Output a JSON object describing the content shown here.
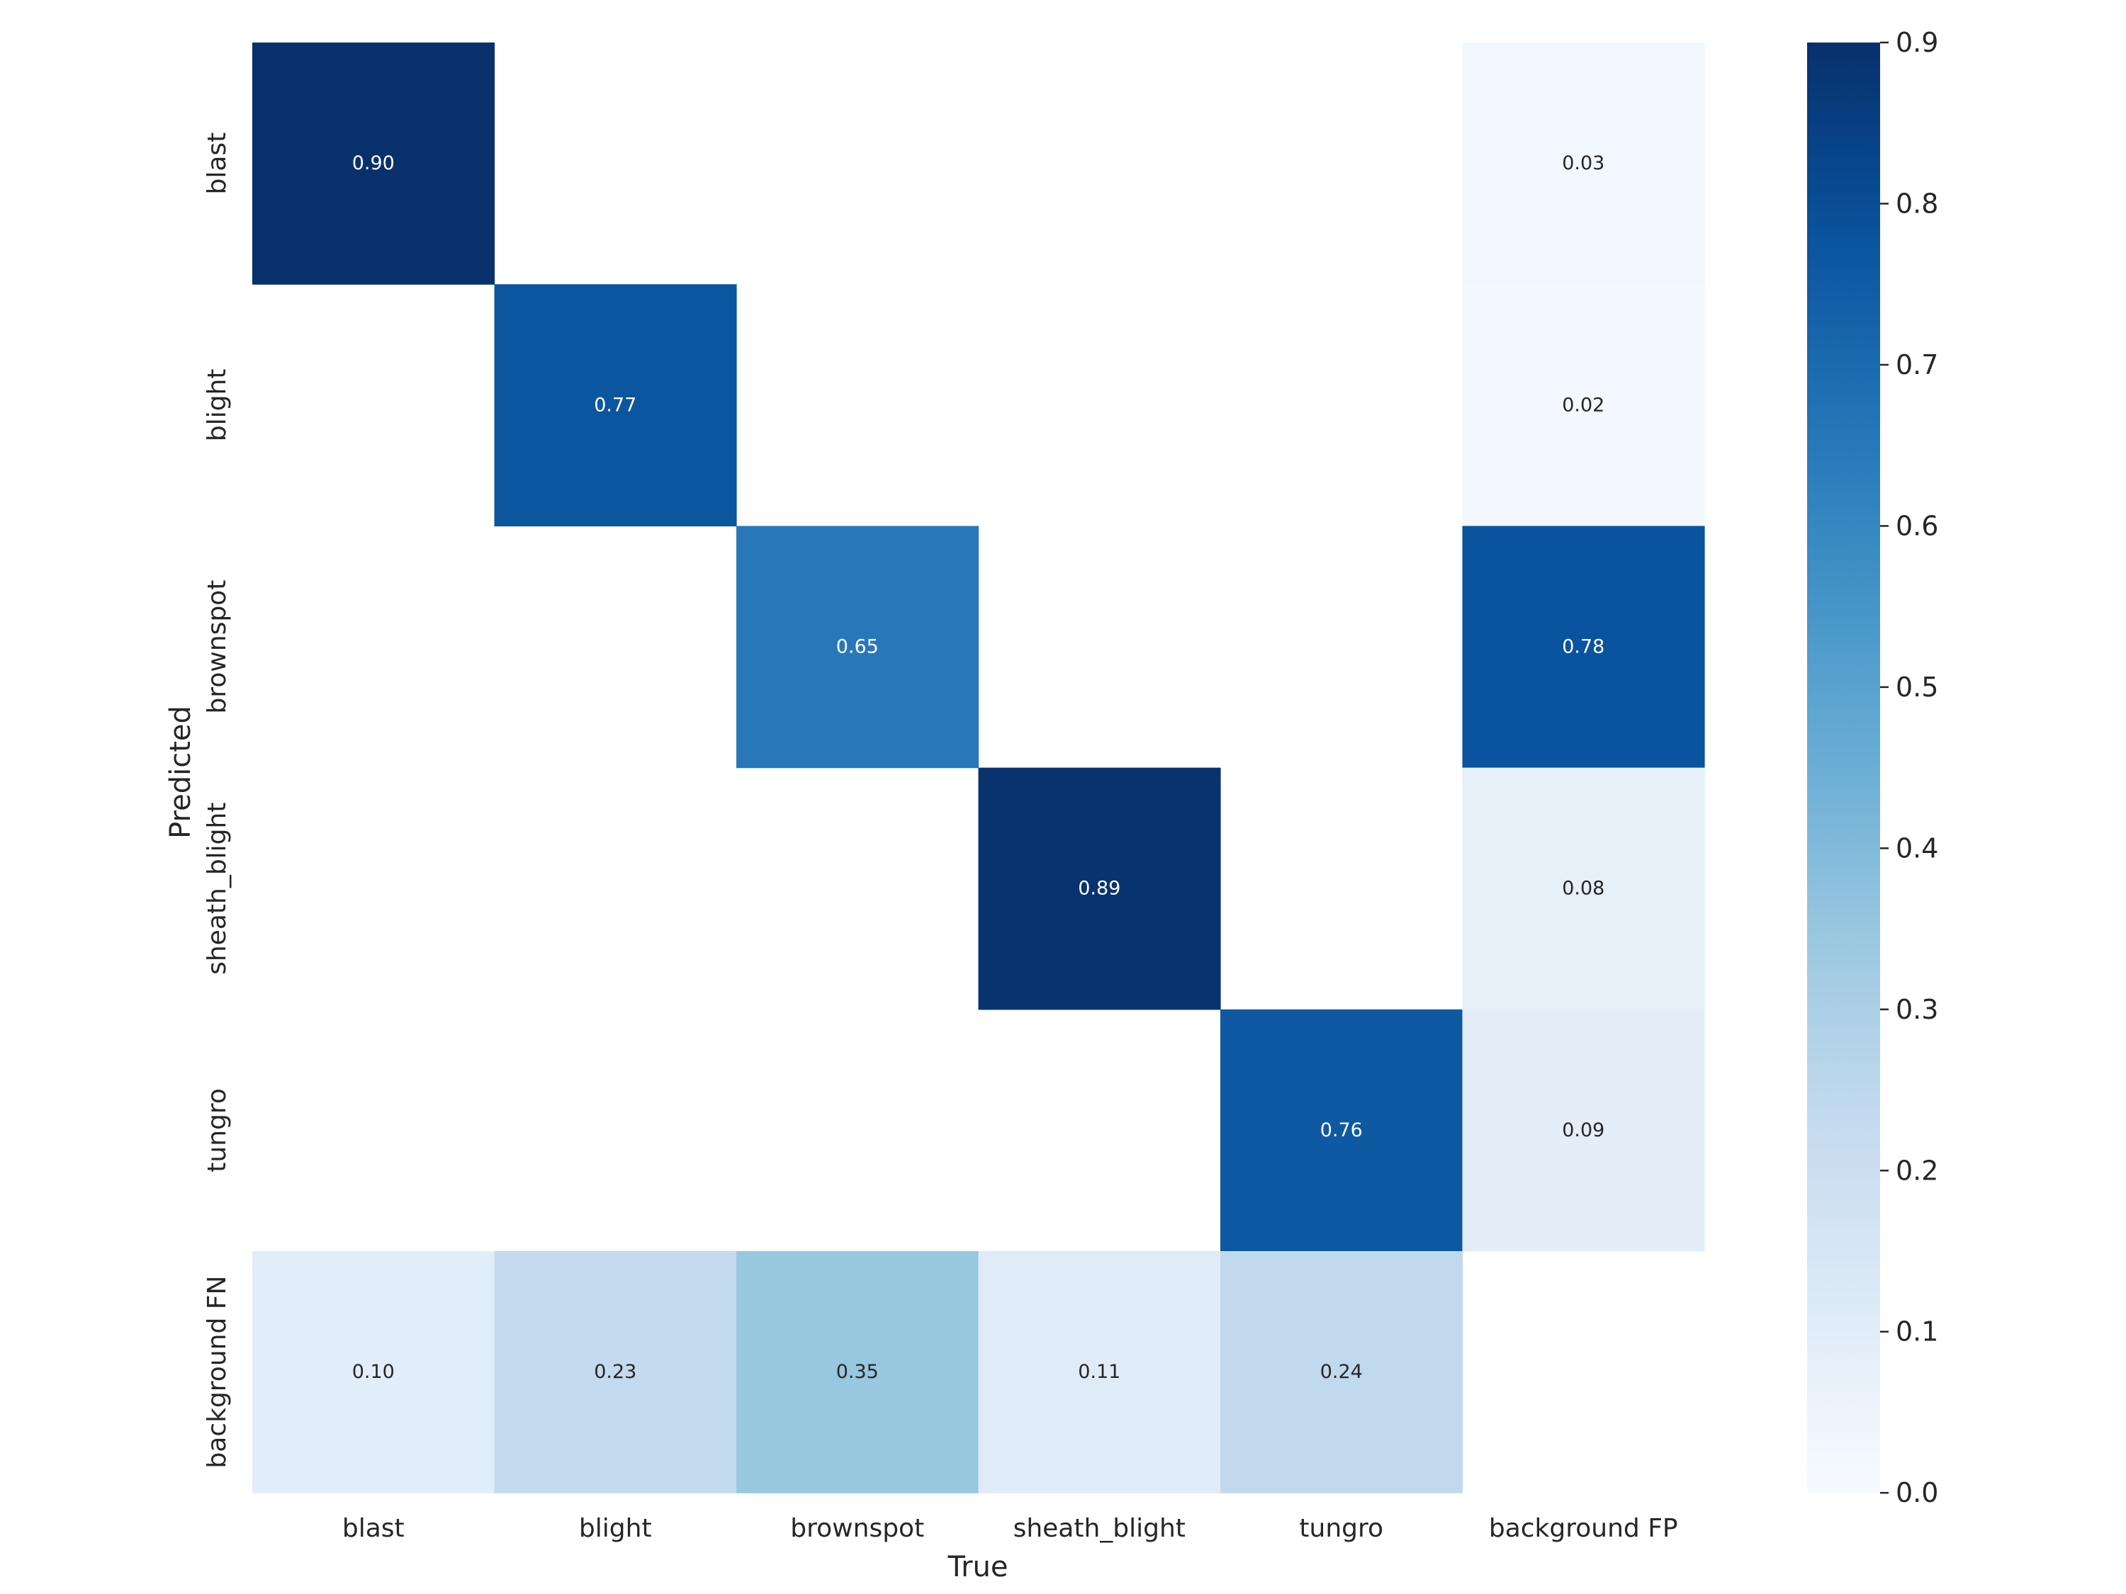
{
  "chart_data": {
    "type": "heatmap",
    "title": "",
    "xlabel": "True",
    "ylabel": "Predicted",
    "x_categories": [
      "blast",
      "blight",
      "brownspot",
      "sheath_blight",
      "tungro",
      "background FP"
    ],
    "y_categories": [
      "blast",
      "blight",
      "brownspot",
      "sheath_blight",
      "tungro",
      "background FN"
    ],
    "values": [
      [
        0.9,
        null,
        null,
        null,
        null,
        0.03
      ],
      [
        null,
        0.77,
        null,
        null,
        null,
        0.02
      ],
      [
        null,
        null,
        0.65,
        null,
        null,
        0.78
      ],
      [
        null,
        null,
        null,
        0.89,
        null,
        0.08
      ],
      [
        null,
        null,
        null,
        null,
        0.76,
        0.09
      ],
      [
        0.1,
        0.23,
        0.35,
        0.11,
        0.24,
        null
      ]
    ],
    "value_labels": [
      [
        "0.90",
        "",
        "",
        "",
        "",
        "0.03"
      ],
      [
        "",
        "0.77",
        "",
        "",
        "",
        "0.02"
      ],
      [
        "",
        "",
        "0.65",
        "",
        "",
        "0.78"
      ],
      [
        "",
        "",
        "",
        "0.89",
        "",
        "0.08"
      ],
      [
        "",
        "",
        "",
        "",
        "0.76",
        "0.09"
      ],
      [
        "0.10",
        "0.23",
        "0.35",
        "0.11",
        "0.24",
        ""
      ]
    ],
    "colormap": "Blues",
    "vmin": 0.0,
    "vmax": 0.9,
    "colorbar_ticks": [
      "0.0",
      "0.1",
      "0.2",
      "0.3",
      "0.4",
      "0.5",
      "0.6",
      "0.7",
      "0.8",
      "0.9"
    ],
    "grid": false,
    "legend": "colorbar-right"
  }
}
